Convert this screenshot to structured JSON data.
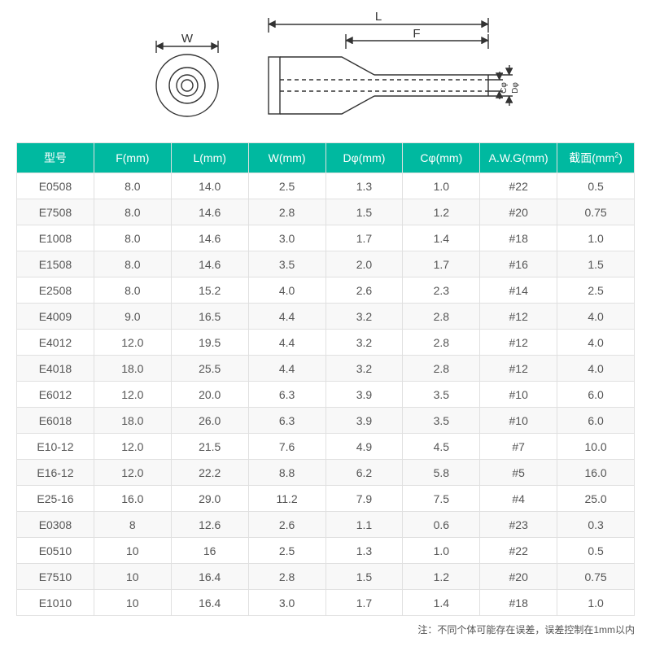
{
  "diagram": {
    "labels": {
      "W": "W",
      "L": "L",
      "F": "F",
      "D": "Dφ",
      "C": "Cφ"
    },
    "stroke": "#333333",
    "stroke_width": 1.4
  },
  "table": {
    "header_bg": "#00b9a0",
    "header_fg": "#ffffff",
    "row_odd_bg": "#ffffff",
    "row_even_bg": "#f8f8f8",
    "border_color": "#e0e0e0",
    "text_color": "#555555",
    "font_size": 14,
    "columns": [
      {
        "key": "model",
        "label": "型号"
      },
      {
        "key": "F",
        "label": "F(mm)"
      },
      {
        "key": "L",
        "label": "L(mm)"
      },
      {
        "key": "W",
        "label": "W(mm)"
      },
      {
        "key": "D",
        "label": "Dφ(mm)"
      },
      {
        "key": "C",
        "label": "Cφ(mm)"
      },
      {
        "key": "AWG",
        "label": "A.W.G(mm)"
      },
      {
        "key": "area",
        "label": "截面(mm²)",
        "label_html": "截面(mm<sup>2</sup>)"
      }
    ],
    "rows": [
      {
        "model": "E0508",
        "F": "8.0",
        "L": "14.0",
        "W": "2.5",
        "D": "1.3",
        "C": "1.0",
        "AWG": "#22",
        "area": "0.5"
      },
      {
        "model": "E7508",
        "F": "8.0",
        "L": "14.6",
        "W": "2.8",
        "D": "1.5",
        "C": "1.2",
        "AWG": "#20",
        "area": "0.75"
      },
      {
        "model": "E1008",
        "F": "8.0",
        "L": "14.6",
        "W": "3.0",
        "D": "1.7",
        "C": "1.4",
        "AWG": "#18",
        "area": "1.0"
      },
      {
        "model": "E1508",
        "F": "8.0",
        "L": "14.6",
        "W": "3.5",
        "D": "2.0",
        "C": "1.7",
        "AWG": "#16",
        "area": "1.5"
      },
      {
        "model": "E2508",
        "F": "8.0",
        "L": "15.2",
        "W": "4.0",
        "D": "2.6",
        "C": "2.3",
        "AWG": "#14",
        "area": "2.5"
      },
      {
        "model": "E4009",
        "F": "9.0",
        "L": "16.5",
        "W": "4.4",
        "D": "3.2",
        "C": "2.8",
        "AWG": "#12",
        "area": "4.0"
      },
      {
        "model": "E4012",
        "F": "12.0",
        "L": "19.5",
        "W": "4.4",
        "D": "3.2",
        "C": "2.8",
        "AWG": "#12",
        "area": "4.0"
      },
      {
        "model": "E4018",
        "F": "18.0",
        "L": "25.5",
        "W": "4.4",
        "D": "3.2",
        "C": "2.8",
        "AWG": "#12",
        "area": "4.0"
      },
      {
        "model": "E6012",
        "F": "12.0",
        "L": "20.0",
        "W": "6.3",
        "D": "3.9",
        "C": "3.5",
        "AWG": "#10",
        "area": "6.0"
      },
      {
        "model": "E6018",
        "F": "18.0",
        "L": "26.0",
        "W": "6.3",
        "D": "3.9",
        "C": "3.5",
        "AWG": "#10",
        "area": "6.0"
      },
      {
        "model": "E10-12",
        "F": "12.0",
        "L": "21.5",
        "W": "7.6",
        "D": "4.9",
        "C": "4.5",
        "AWG": "#7",
        "area": "10.0"
      },
      {
        "model": "E16-12",
        "F": "12.0",
        "L": "22.2",
        "W": "8.8",
        "D": "6.2",
        "C": "5.8",
        "AWG": "#5",
        "area": "16.0"
      },
      {
        "model": "E25-16",
        "F": "16.0",
        "L": "29.0",
        "W": "11.2",
        "D": "7.9",
        "C": "7.5",
        "AWG": "#4",
        "area": "25.0"
      },
      {
        "model": "E0308",
        "F": "8",
        "L": "12.6",
        "W": "2.6",
        "D": "1.1",
        "C": "0.6",
        "AWG": "#23",
        "area": "0.3"
      },
      {
        "model": "E0510",
        "F": "10",
        "L": "16",
        "W": "2.5",
        "D": "1.3",
        "C": "1.0",
        "AWG": "#22",
        "area": "0.5"
      },
      {
        "model": "E7510",
        "F": "10",
        "L": "16.4",
        "W": "2.8",
        "D": "1.5",
        "C": "1.2",
        "AWG": "#20",
        "area": "0.75"
      },
      {
        "model": "E1010",
        "F": "10",
        "L": "16.4",
        "W": "3.0",
        "D": "1.7",
        "C": "1.4",
        "AWG": "#18",
        "area": "1.0"
      }
    ]
  },
  "footnote": "注：不同个体可能存在误差，误差控制在1mm以内"
}
